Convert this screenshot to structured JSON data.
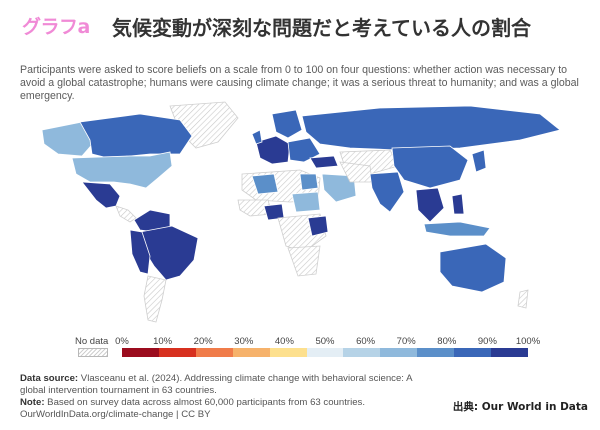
{
  "brand": "グラフa",
  "title": "気候変動が深刻な問題だと考えている人の割合",
  "subtitle": "Participants were asked to score beliefs on a scale from 0 to 100 on four questions: whether action was necessary to avoid a global catastrophe; humans were causing climate change; it was a serious threat to humanity; and was a global emergency.",
  "legend": {
    "no_data_label": "No data",
    "ticks": [
      "0%",
      "10%",
      "20%",
      "30%",
      "40%",
      "50%",
      "60%",
      "70%",
      "80%",
      "90%",
      "100%"
    ],
    "colors": [
      "#9b0c1e",
      "#d7301f",
      "#f07c4a",
      "#f6b26b",
      "#fde08e",
      "#e4eef5",
      "#b6d3e7",
      "#8fb9dc",
      "#5b8fc9",
      "#3a67b8",
      "#2a3b93"
    ]
  },
  "footer": {
    "source_label": "Data source:",
    "source_text": " Vlasceanu et al. (2024). Addressing climate change with behavioral science: A global intervention tournament in 63 countries.",
    "note_label": "Note:",
    "note_text": " Based on survey data across almost 60,000 participants from 63 countries.",
    "url": "OurWorldInData.org/climate-change | CC BY"
  },
  "credit": "出典: Our World in Data"
}
